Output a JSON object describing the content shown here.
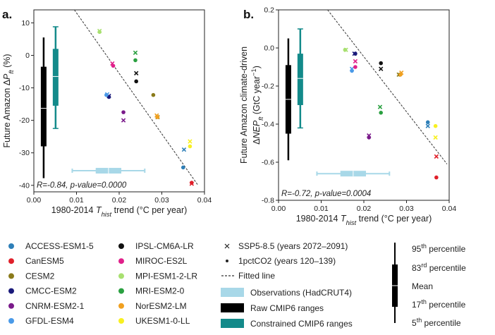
{
  "model_colors": {
    "ACCESS-ESM1-5": "#2e7fb8",
    "CanESM5": "#e0202a",
    "CESM2": "#8a7a1a",
    "CMCC-ESM2": "#1a1a7a",
    "CNRM-ESM2-1": "#7a1a8a",
    "GFDL-ESM4": "#4a9ae8",
    "IPSL-CM6A-LR": "#111111",
    "MIROC-ES2L": "#e0208a",
    "MPI-ESM1-2-LR": "#a8e070",
    "MRI-ESM2-0": "#2aa040",
    "NorESM2-LM": "#f0a020",
    "UKESM1-0-LL": "#f8f020"
  },
  "chart_data": [
    {
      "type": "scatter",
      "panel_label": "a.",
      "xlabel": "1980-2014 T_hist trend (°C per year)",
      "ylabel": "Future Amazon ΔP_ft (%)",
      "xlim": [
        0.0,
        0.04
      ],
      "ylim": [
        -42,
        14
      ],
      "xticks": [
        "0.00",
        "0.01",
        "0.02",
        "0.03",
        "0.04"
      ],
      "yticks": [
        "10",
        "0",
        "-10",
        "-20",
        "-30",
        "-40"
      ],
      "annotation": "R=-0.84, p-value=0.0000",
      "fitted_line": [
        [
          0.0095,
          14
        ],
        [
          0.0385,
          -40
        ]
      ],
      "observations": {
        "min": 0.009,
        "q1": 0.0145,
        "median": 0.0175,
        "q3": 0.0205,
        "max": 0.026,
        "y": -35.5
      },
      "raw_range": {
        "x": 0.0023,
        "p5": -37.8,
        "p17": -28.0,
        "mean": -16.3,
        "p83": -3.5,
        "p95": 5.5
      },
      "constrained_range": {
        "x": 0.0051,
        "p5": -22.5,
        "p17": -15.5,
        "mean": -6.5,
        "p83": 2.0,
        "p95": 8.8
      },
      "series": [
        {
          "name": "SSP5-8.5 (years 2072–2091)",
          "marker": "x",
          "points": [
            {
              "model": "ACCESS-ESM1-5",
              "x": 0.0352,
              "y": -29.0
            },
            {
              "model": "CanESM5",
              "x": 0.037,
              "y": -39.5
            },
            {
              "model": "CESM2",
              "x": 0.029,
              "y": -19.0
            },
            {
              "model": "CMCC-ESM2",
              "x": 0.0176,
              "y": -12.5
            },
            {
              "model": "CNRM-ESM2-1",
              "x": 0.021,
              "y": -20.0
            },
            {
              "model": "GFDL-ESM4",
              "x": 0.0172,
              "y": -12.0
            },
            {
              "model": "IPSL-CM6A-LR",
              "x": 0.024,
              "y": -5.5
            },
            {
              "model": "MIROC-ES2L",
              "x": 0.0184,
              "y": -2.5
            },
            {
              "model": "MPI-ESM1-2-LR",
              "x": 0.0154,
              "y": 7.5
            },
            {
              "model": "MRI-ESM2-0",
              "x": 0.0238,
              "y": 0.8
            },
            {
              "model": "NorESM2-LM",
              "x": 0.0288,
              "y": -18.5
            },
            {
              "model": "UKESM1-0-LL",
              "x": 0.0366,
              "y": -26.5
            }
          ]
        },
        {
          "name": "1pctCO2 (years 120–139)",
          "marker": "o",
          "points": [
            {
              "model": "ACCESS-ESM1-5",
              "x": 0.035,
              "y": -34.5
            },
            {
              "model": "CanESM5",
              "x": 0.037,
              "y": -39.2
            },
            {
              "model": "CESM2",
              "x": 0.028,
              "y": -12.2
            },
            {
              "model": "CMCC-ESM2",
              "x": 0.0176,
              "y": -12.8
            },
            {
              "model": "CNRM-ESM2-1",
              "x": 0.021,
              "y": -17.5
            },
            {
              "model": "GFDL-ESM4",
              "x": 0.017,
              "y": -12.2
            },
            {
              "model": "IPSL-CM6A-LR",
              "x": 0.024,
              "y": -8.0
            },
            {
              "model": "MIROC-ES2L",
              "x": 0.0186,
              "y": -3.2
            },
            {
              "model": "MPI-ESM1-2-LR",
              "x": 0.0154,
              "y": 7.2
            },
            {
              "model": "MRI-ESM2-0",
              "x": 0.0238,
              "y": -1.5
            },
            {
              "model": "NorESM2-LM",
              "x": 0.029,
              "y": -19.0
            },
            {
              "model": "UKESM1-0-LL",
              "x": 0.0366,
              "y": -28.0
            }
          ]
        }
      ]
    },
    {
      "type": "scatter",
      "panel_label": "b.",
      "xlabel": "1980-2014 T_hist trend (°C per year)",
      "ylabel": "Future Amazon climate-driven ΔNEP_ft (GtC year−1)",
      "xlim": [
        0.0,
        0.04
      ],
      "ylim": [
        -0.8,
        0.2
      ],
      "xticks": [
        "0.00",
        "0.01",
        "0.02",
        "0.03",
        "0.04"
      ],
      "yticks": [
        "0.2",
        "0.0",
        "-0.2",
        "-0.4",
        "-0.6",
        "-0.8"
      ],
      "annotation": "R=-0.72, p-value=0.0004",
      "fitted_line": [
        [
          0.0115,
          0.2
        ],
        [
          0.0395,
          -0.61
        ]
      ],
      "observations": {
        "min": 0.009,
        "q1": 0.0145,
        "median": 0.0175,
        "q3": 0.0205,
        "max": 0.026,
        "y": -0.66
      },
      "raw_range": {
        "x": 0.0023,
        "p5": -0.59,
        "p17": -0.45,
        "mean": -0.27,
        "p83": -0.09,
        "p95": 0.05
      },
      "constrained_range": {
        "x": 0.0051,
        "p5": -0.42,
        "p17": -0.3,
        "mean": -0.16,
        "p83": -0.03,
        "p95": 0.1
      },
      "series": [
        {
          "name": "SSP5-8.5 (years 2072–2091)",
          "marker": "x",
          "points": [
            {
              "model": "ACCESS-ESM1-5",
              "x": 0.035,
              "y": -0.41
            },
            {
              "model": "CanESM5",
              "x": 0.037,
              "y": -0.57
            },
            {
              "model": "CESM2",
              "x": 0.0282,
              "y": -0.14
            },
            {
              "model": "CMCC-ESM2",
              "x": 0.0178,
              "y": -0.03
            },
            {
              "model": "CNRM-ESM2-1",
              "x": 0.0212,
              "y": -0.46
            },
            {
              "model": "GFDL-ESM4",
              "x": 0.0172,
              "y": -0.11
            },
            {
              "model": "IPSL-CM6A-LR",
              "x": 0.024,
              "y": -0.11
            },
            {
              "model": "MIROC-ES2L",
              "x": 0.018,
              "y": -0.07
            },
            {
              "model": "MPI-ESM1-2-LR",
              "x": 0.0158,
              "y": -0.01
            },
            {
              "model": "MRI-ESM2-0",
              "x": 0.0238,
              "y": -0.31
            },
            {
              "model": "NorESM2-LM",
              "x": 0.0288,
              "y": -0.13
            },
            {
              "model": "UKESM1-0-LL",
              "x": 0.0368,
              "y": -0.47
            }
          ]
        },
        {
          "name": "1pctCO2 (years 120–139)",
          "marker": "o",
          "points": [
            {
              "model": "ACCESS-ESM1-5",
              "x": 0.035,
              "y": -0.39
            },
            {
              "model": "CanESM5",
              "x": 0.037,
              "y": -0.68
            },
            {
              "model": "CESM2",
              "x": 0.0284,
              "y": -0.14
            },
            {
              "model": "CMCC-ESM2",
              "x": 0.018,
              "y": -0.03
            },
            {
              "model": "CNRM-ESM2-1",
              "x": 0.0212,
              "y": -0.47
            },
            {
              "model": "GFDL-ESM4",
              "x": 0.0172,
              "y": -0.12
            },
            {
              "model": "IPSL-CM6A-LR",
              "x": 0.024,
              "y": -0.08
            },
            {
              "model": "MIROC-ES2L",
              "x": 0.018,
              "y": -0.1
            },
            {
              "model": "MPI-ESM1-2-LR",
              "x": 0.0156,
              "y": -0.01
            },
            {
              "model": "MRI-ESM2-0",
              "x": 0.024,
              "y": -0.34
            },
            {
              "model": "NorESM2-LM",
              "x": 0.0286,
              "y": -0.14
            },
            {
              "model": "UKESM1-0-LL",
              "x": 0.0368,
              "y": -0.41
            }
          ]
        }
      ]
    }
  ],
  "legend": {
    "models": [
      "ACCESS-ESM1-5",
      "CanESM5",
      "CESM2",
      "CMCC-ESM2",
      "CNRM-ESM2-1",
      "GFDL-ESM4",
      "IPSL-CM6A-LR",
      "MIROC-ES2L",
      "MPI-ESM1-2-LR",
      "MRI-ESM2-0",
      "NorESM2-LM",
      "UKESM1-0-LL"
    ],
    "markers": [
      "SSP5-8.5 (years 2072–2091)",
      "1pctCO2 (years 120–139)"
    ],
    "fitted_line": "Fitted line",
    "observations": "Observations (HadCRUT4)",
    "raw": "Raw CMIP6 ranges",
    "constrained": "Constrained CMIP6 ranges",
    "percentiles": {
      "p95": "95",
      "p83": "83",
      "mean": "Mean",
      "p17": "17",
      "p5": "5",
      "suffix": "percentile",
      "st": "th",
      "rd": "rd"
    }
  },
  "colors": {
    "raw": "#000000",
    "constrained": "#138a8a",
    "observations": "#a8d8e8"
  }
}
